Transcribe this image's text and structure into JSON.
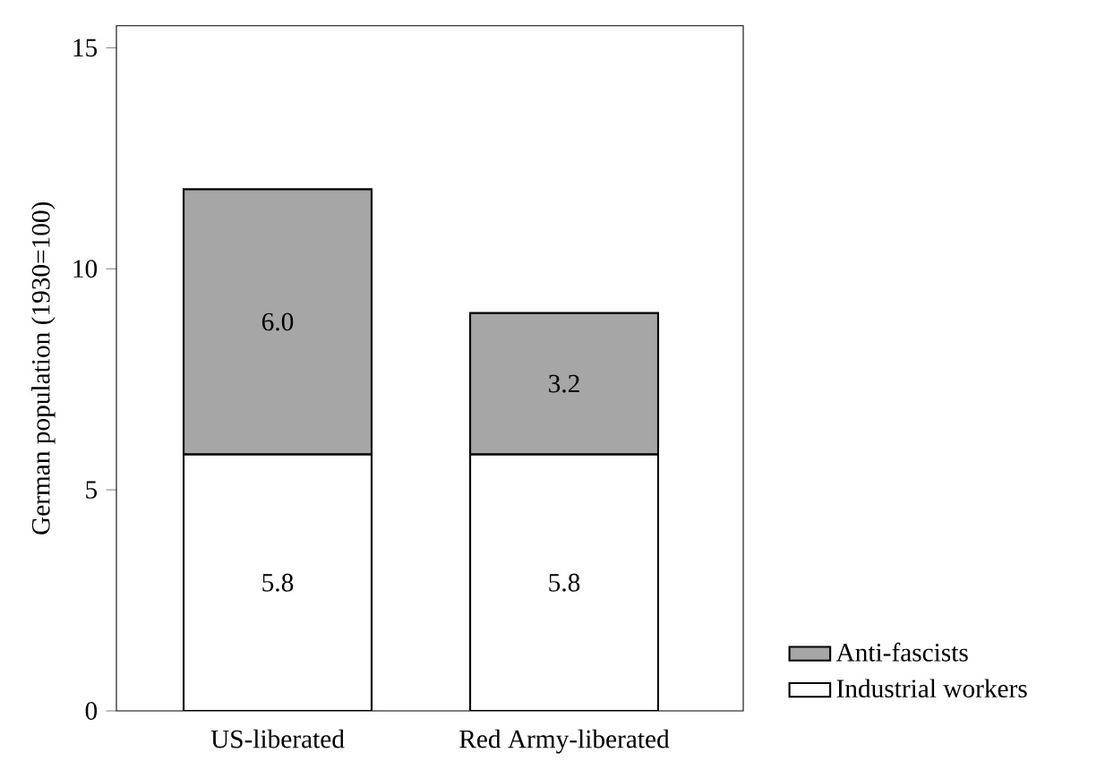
{
  "chart_data": {
    "type": "bar",
    "stacked": true,
    "ylabel": "German population (1930=100)",
    "categories": [
      "US-liberated",
      "Red Army-liberated"
    ],
    "series": [
      {
        "name": "Industrial workers",
        "color": "#ffffff",
        "values": [
          5.8,
          5.8
        ],
        "value_labels": [
          "5.8",
          "5.8"
        ]
      },
      {
        "name": "Anti-fascists",
        "color": "#a6a6a6",
        "values": [
          6.0,
          3.2
        ],
        "value_labels": [
          "6.0",
          "3.2"
        ]
      }
    ],
    "ylim": [
      0,
      15.5
    ],
    "yticks": [
      0,
      5,
      10,
      15
    ],
    "grid": false,
    "legend": "bottom right"
  }
}
